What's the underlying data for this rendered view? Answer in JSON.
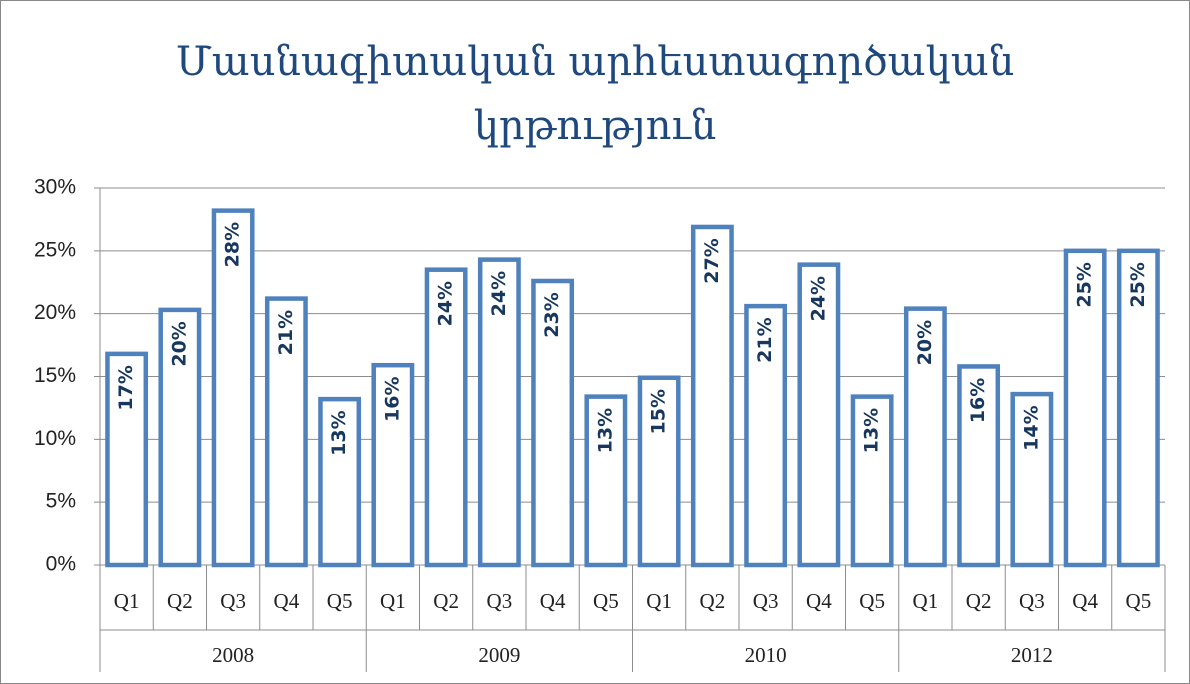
{
  "chart_data": {
    "type": "bar",
    "title": "Մասնագիտական արհեստագործական կրթություն",
    "categories": [
      "Q1",
      "Q2",
      "Q3",
      "Q4",
      "Q5",
      "Q1",
      "Q2",
      "Q3",
      "Q4",
      "Q5",
      "Q1",
      "Q2",
      "Q3",
      "Q4",
      "Q5",
      "Q1",
      "Q2",
      "Q3",
      "Q4",
      "Q5"
    ],
    "groups": [
      "2008",
      "2009",
      "2010",
      "2012"
    ],
    "values": [
      16.8,
      20.3,
      28.2,
      21.2,
      13.2,
      15.9,
      23.5,
      24.3,
      22.6,
      13.4,
      14.9,
      26.9,
      20.6,
      23.9,
      13.4,
      20.4,
      15.8,
      13.6,
      25,
      25
    ],
    "value_labels": [
      "17%",
      "20%",
      "28%",
      "21%",
      "13%",
      "16%",
      "24%",
      "24%",
      "23%",
      "13%",
      "15%",
      "27%",
      "21%",
      "24%",
      "13%",
      "20%",
      "16%",
      "14%",
      "25%",
      "25%"
    ],
    "color": "#4f81bd",
    "ylim": [
      0,
      30
    ],
    "yticks": [
      {
        "value": 0,
        "label": "0%"
      },
      {
        "value": 5,
        "label": "5%"
      },
      {
        "value": 10,
        "label": "10%"
      },
      {
        "value": 15,
        "label": "15%"
      },
      {
        "value": 20,
        "label": "20%"
      },
      {
        "value": 25,
        "label": "25%"
      },
      {
        "value": 30,
        "label": "30%"
      }
    ],
    "grid": true
  }
}
